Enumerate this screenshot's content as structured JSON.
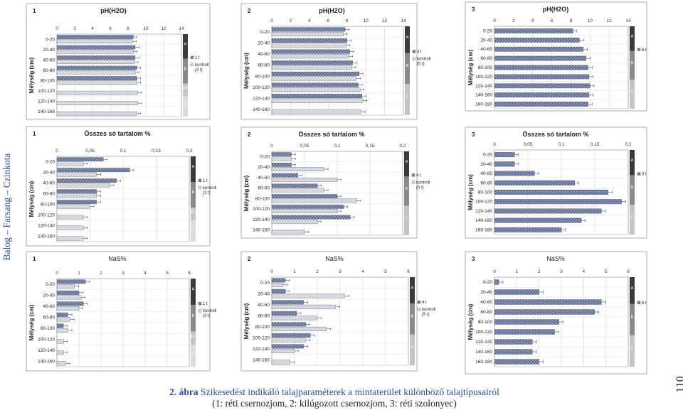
{
  "sidebar": {
    "text": "Balog – Farsang – Czinkota"
  },
  "page_number": "110",
  "caption": {
    "label": "2. ábra",
    "line1": "Szikesedést indikáló talajparaméterek a mintaterület különböző talajtípusairól",
    "line2": "(1: réti csernozjom, 2: kilúgozott csernozjom, 3: réti szolonyec)"
  },
  "colors": {
    "primary": "#5a6890",
    "control": "#c9ccd6",
    "horizon_dark": "#3a3a3a",
    "horizon_mid": "#8a8a8a",
    "horizon_light": "#c4c4c4",
    "blue_text": "#2a4e9a"
  },
  "chart_data": [
    {
      "type": "bar",
      "orientation": "horizontal",
      "title": "pH(H2O)",
      "panel": "1",
      "ylabel": "Mélység (cm)",
      "xlim": [
        0,
        14
      ],
      "xticks": [
        0,
        2,
        4,
        6,
        8,
        10,
        12,
        14
      ],
      "categories": [
        "0-20",
        "20-40",
        "40-60",
        "60-80",
        "80-100",
        "100-120",
        "120-140",
        "140-160"
      ],
      "series": [
        {
          "name": "1 t",
          "values": [
            8.6,
            8.8,
            8.8,
            9.0,
            9.0,
            null,
            null,
            null
          ]
        },
        {
          "name": "kontroll (3 t)",
          "values": [
            8.5,
            8.6,
            8.7,
            8.8,
            9.0,
            9.1,
            9.1,
            9.0
          ]
        }
      ],
      "horizons": [
        "A",
        "B",
        "BC",
        "C"
      ]
    },
    {
      "type": "bar",
      "orientation": "horizontal",
      "title": "pH(H2O)",
      "panel": "2",
      "ylabel": "Mélység (cm)",
      "xlim": [
        0,
        14
      ],
      "xticks": [
        0,
        2,
        4,
        6,
        8,
        10,
        12,
        14
      ],
      "categories": [
        "0-20",
        "20-40",
        "40-60",
        "60-80",
        "80-100",
        "100-120",
        "120-140",
        "140-160"
      ],
      "series": [
        {
          "name": "4 t",
          "values": [
            7.8,
            8.0,
            8.3,
            8.6,
            9.3,
            9.2,
            9.6,
            null
          ]
        },
        {
          "name": "kontroll (5 t)",
          "values": [
            7.6,
            7.9,
            8.2,
            8.5,
            9.0,
            9.4,
            9.7,
            9.5
          ]
        }
      ],
      "horizons": [
        "A",
        "B",
        "C"
      ]
    },
    {
      "type": "bar",
      "orientation": "horizontal",
      "title": "pH(H2O)",
      "panel": "3",
      "ylabel": "Mélység (cm)",
      "xlim": [
        0,
        14
      ],
      "xticks": [
        0,
        2,
        4,
        6,
        8,
        10,
        12,
        14
      ],
      "categories": [
        "0-20",
        "20-40",
        "40-60",
        "60-80",
        "80-100",
        "100-120",
        "120-140",
        "140-160",
        "160-180"
      ],
      "series": [
        {
          "name": "6 t",
          "values": [
            8.2,
            8.9,
            9.3,
            9.6,
            9.8,
            9.9,
            10.0,
            9.9,
            9.8
          ]
        }
      ],
      "horizons": [
        "A",
        "B",
        "C"
      ]
    },
    {
      "type": "bar",
      "orientation": "horizontal",
      "title": "Összes só tartalom %",
      "panel": "1",
      "ylabel": "Mélység (cm)",
      "xlim": [
        0,
        0.2
      ],
      "xticks": [
        "0",
        "0,05",
        "0,1",
        "0,15",
        "0,2"
      ],
      "categories": [
        "0-20",
        "20-40",
        "40-60",
        "60-80",
        "80-100",
        "100-120",
        "120-140",
        "140-160"
      ],
      "series": [
        {
          "name": "1 t",
          "values": [
            0.07,
            0.11,
            0.09,
            0.06,
            0.06,
            null,
            null,
            null
          ]
        },
        {
          "name": "kontroll (3 t)",
          "values": [
            0.04,
            0.06,
            0.08,
            0.06,
            0.05,
            0.04,
            0.04,
            0.04
          ]
        }
      ],
      "horizons": [
        "A",
        "B",
        "BC",
        "C"
      ]
    },
    {
      "type": "bar",
      "orientation": "horizontal",
      "title": "Összes só tartalom %",
      "panel": "2",
      "ylabel": "Mélység (cm)",
      "xlim": [
        0,
        0.2
      ],
      "xticks": [
        "0",
        "0,05",
        "0,1",
        "0,15",
        "0,2"
      ],
      "categories": [
        "0-20",
        "20-40",
        "40-60",
        "60-80",
        "80-100",
        "100-120",
        "120-140",
        "140-160"
      ],
      "series": [
        {
          "name": "4 t",
          "values": [
            0.03,
            0.03,
            0.04,
            0.07,
            0.1,
            0.11,
            0.12,
            null
          ]
        },
        {
          "name": "kontroll (5 t)",
          "values": [
            0.03,
            0.08,
            0.1,
            0.08,
            0.13,
            0.1,
            0.07,
            0.05
          ]
        }
      ],
      "horizons": [
        "A",
        "B",
        "C"
      ]
    },
    {
      "type": "bar",
      "orientation": "horizontal",
      "title": "Összes só tartalom %",
      "panel": "3",
      "ylabel": "Mélység (cm)",
      "xlim": [
        0,
        0.2
      ],
      "xticks": [
        "0",
        "0,05",
        "0,1",
        "0,15",
        "0,2"
      ],
      "categories": [
        "0-20",
        "20-40",
        "40-60",
        "60-80",
        "80-100",
        "100-120",
        "120-140",
        "140-160",
        "160-180"
      ],
      "series": [
        {
          "name": "6 t",
          "values": [
            0.03,
            0.03,
            0.06,
            0.12,
            0.17,
            0.19,
            0.16,
            0.13,
            0.1
          ]
        }
      ],
      "horizons": [
        "A",
        "B",
        "C"
      ]
    },
    {
      "type": "bar",
      "orientation": "horizontal",
      "title": "NaS%",
      "panel": "1",
      "ylabel": "Mélység (cm)",
      "xlim": [
        0,
        6
      ],
      "xticks": [
        0,
        1,
        2,
        3,
        4,
        5,
        6
      ],
      "categories": [
        "0-20",
        "20-40",
        "40-60",
        "60-80",
        "80-100",
        "100-120",
        "120-140",
        "140-160"
      ],
      "series": [
        {
          "name": "1 t",
          "values": [
            1.3,
            1.0,
            1.2,
            0.5,
            0.3,
            null,
            null,
            null
          ]
        },
        {
          "name": "kontroll (3 t)",
          "values": [
            0.8,
            1.1,
            1.0,
            0.6,
            0.5,
            0.3,
            0.3,
            0.4
          ]
        }
      ],
      "horizons": [
        "A",
        "B",
        "BC",
        "C"
      ]
    },
    {
      "type": "bar",
      "orientation": "horizontal",
      "title": "NaS%",
      "panel": "2",
      "ylabel": "Mélység (cm)",
      "xlim": [
        0,
        6
      ],
      "xticks": [
        0,
        1,
        2,
        3,
        4,
        5,
        6
      ],
      "categories": [
        "0-20",
        "20-40",
        "40-60",
        "60-80",
        "80-100",
        "100-120",
        "120-140",
        "140-160"
      ],
      "series": [
        {
          "name": "4 t",
          "values": [
            0.6,
            0.6,
            1.4,
            1.1,
            1.5,
            1.7,
            1.4,
            null
          ]
        },
        {
          "name": "kontroll (5 t)",
          "values": [
            0.5,
            3.2,
            2.8,
            2.0,
            2.4,
            1.5,
            1.0,
            0.8
          ]
        }
      ],
      "horizons": [
        "A",
        "B",
        "C"
      ]
    },
    {
      "type": "bar",
      "orientation": "horizontal",
      "title": "NaS%",
      "panel": "3",
      "ylabel": "Mélység (cm)",
      "xlim": [
        0,
        6
      ],
      "xticks": [
        0,
        1,
        2,
        3,
        4,
        5,
        6
      ],
      "categories": [
        "0-20",
        "20-40",
        "40-60",
        "60-80",
        "80-100",
        "100-120",
        "120-140",
        "140-160",
        "160-180"
      ],
      "series": [
        {
          "name": "6 t",
          "values": [
            0.2,
            2.0,
            4.8,
            4.5,
            2.9,
            2.7,
            1.7,
            1.7,
            2.0
          ]
        }
      ],
      "horizons": [
        "A",
        "B",
        "C"
      ]
    }
  ]
}
